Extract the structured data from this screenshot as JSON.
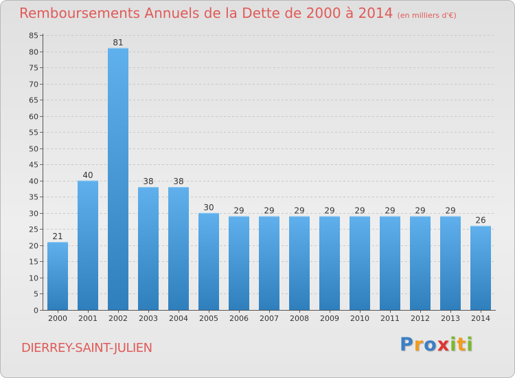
{
  "title": "Remboursements Annuels de la Dette de 2000 à 2014",
  "unit": "(en milliers d'€)",
  "commune": "DIERREY-SAINT-JULIEN",
  "logo": {
    "text": "Proxiti",
    "letters": [
      {
        "ch": "P",
        "color": "#3b7fc4"
      },
      {
        "ch": "r",
        "color": "#f29b1d"
      },
      {
        "ch": "o",
        "color": "#3b7fc4"
      },
      {
        "ch": "x",
        "color": "#e0342f"
      },
      {
        "ch": "i",
        "color": "#7cb82f"
      },
      {
        "ch": "t",
        "color": "#f29b1d"
      },
      {
        "ch": "i",
        "color": "#7cb82f"
      }
    ]
  },
  "colors": {
    "title": "#e05a58",
    "bar_top": "#5fb0ec",
    "bar_bottom": "#2f7fbd",
    "grid": "#c8c8c8"
  },
  "chart_data": {
    "type": "bar",
    "title": "Remboursements Annuels de la Dette de 2000 à 2014",
    "xlabel": "",
    "ylabel": "",
    "categories": [
      "2000",
      "2001",
      "2002",
      "2003",
      "2004",
      "2005",
      "2006",
      "2007",
      "2008",
      "2009",
      "2010",
      "2011",
      "2012",
      "2013",
      "2014"
    ],
    "values": [
      21,
      40,
      81,
      38,
      38,
      30,
      29,
      29,
      29,
      29,
      29,
      29,
      29,
      29,
      26
    ],
    "ylim": [
      0,
      85
    ],
    "yticks": [
      0,
      5,
      10,
      15,
      20,
      25,
      30,
      35,
      40,
      45,
      50,
      55,
      60,
      65,
      70,
      75,
      80,
      85
    ],
    "grid": true
  }
}
